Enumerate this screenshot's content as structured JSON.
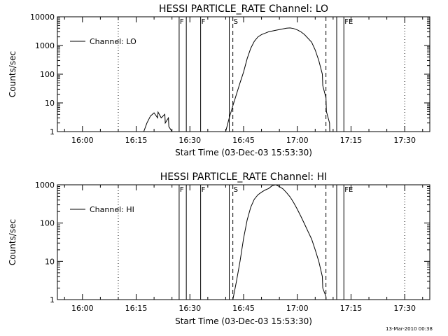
{
  "colors": {
    "background": "#ffffff",
    "foreground": "#000000"
  },
  "footer": {
    "date": "13-Mar-2010 00:38"
  },
  "chart_data": [
    {
      "type": "line",
      "title": "HESSI PARTICLE_RATE Channel: LO",
      "xlabel": "Start Time (03-Dec-03 15:53:30)",
      "ylabel": "Counts/sec",
      "y_scale": "log",
      "ylim": [
        1,
        10000
      ],
      "xlim": [
        "15:53",
        "17:37"
      ],
      "x_ticks": [
        "16:00",
        "16:15",
        "16:30",
        "16:45",
        "17:00",
        "17:15",
        "17:30"
      ],
      "y_ticks": [
        "1",
        "10",
        "100",
        "1000",
        "10000"
      ],
      "legend": {
        "entries": [
          "Channel: LO"
        ],
        "placement": "top-left"
      },
      "grid": false,
      "markers": [
        {
          "label": "F",
          "time": "16:27",
          "style": "solid"
        },
        {
          "label": "",
          "time": "16:29",
          "style": "solid"
        },
        {
          "label": "F",
          "time": "16:33",
          "style": "solid"
        },
        {
          "label": "",
          "time": "16:41",
          "style": "solid"
        },
        {
          "label": "S",
          "time": "16:42",
          "style": "dashed"
        },
        {
          "label": "",
          "time": "17:08",
          "style": "dashed"
        },
        {
          "label": "",
          "time": "17:11",
          "style": "solid"
        },
        {
          "label": "FE",
          "time": "17:13",
          "style": "solid"
        },
        {
          "label": "",
          "time": "16:10",
          "style": "dotted"
        },
        {
          "label": "",
          "time": "17:30",
          "style": "dotted"
        }
      ],
      "series": [
        {
          "name": "Channel: LO",
          "x": [
            "16:17",
            "16:17",
            "16:18",
            "16:19",
            "16:20",
            "16:21",
            "16:21",
            "16:22",
            "16:23",
            "16:23",
            "16:24",
            "16:24",
            "16:25",
            "16:25"
          ],
          "y": [
            0.5,
            1,
            2,
            3.5,
            4.5,
            3,
            4.8,
            3,
            4,
            2,
            3,
            1.5,
            1,
            0.5
          ]
        },
        {
          "name": "",
          "x": [
            "16:38",
            "16:40",
            "16:41",
            "16:42",
            "16:43",
            "16:44",
            "16:45",
            "16:46",
            "16:47",
            "16:48",
            "16:49",
            "16:50",
            "16:52",
            "16:54",
            "16:56",
            "16:57",
            "16:58",
            "16:59",
            "17:00",
            "17:01",
            "17:02",
            "17:04",
            "17:05",
            "17:06",
            "17:07",
            "17:07",
            "17:08",
            "17:08",
            "17:09",
            "17:09"
          ],
          "y": [
            0.5,
            1,
            3,
            8,
            20,
            50,
            120,
            350,
            800,
            1400,
            2000,
            2400,
            3000,
            3400,
            3800,
            4000,
            4100,
            3900,
            3500,
            3000,
            2400,
            1300,
            700,
            300,
            100,
            40,
            15,
            5,
            2,
            0.5
          ]
        }
      ]
    },
    {
      "type": "line",
      "title": "HESSI PARTICLE_RATE Channel: HI",
      "xlabel": "Start Time (03-Dec-03 15:53:30)",
      "ylabel": "Counts/sec",
      "y_scale": "log",
      "ylim": [
        1,
        1000
      ],
      "xlim": [
        "15:53",
        "17:37"
      ],
      "x_ticks": [
        "16:00",
        "16:15",
        "16:30",
        "16:45",
        "17:00",
        "17:15",
        "17:30"
      ],
      "y_ticks": [
        "1",
        "10",
        "100",
        "1000"
      ],
      "legend": {
        "entries": [
          "Channel: HI"
        ],
        "placement": "top-left"
      },
      "grid": false,
      "markers": [
        {
          "label": "F",
          "time": "16:27",
          "style": "solid"
        },
        {
          "label": "",
          "time": "16:29",
          "style": "solid"
        },
        {
          "label": "F",
          "time": "16:33",
          "style": "solid"
        },
        {
          "label": "",
          "time": "16:41",
          "style": "solid"
        },
        {
          "label": "S",
          "time": "16:42",
          "style": "dashed"
        },
        {
          "label": "",
          "time": "17:08",
          "style": "dashed"
        },
        {
          "label": "",
          "time": "17:11",
          "style": "solid"
        },
        {
          "label": "FE",
          "time": "17:13",
          "style": "solid"
        },
        {
          "label": "",
          "time": "16:10",
          "style": "dotted"
        },
        {
          "label": "",
          "time": "17:30",
          "style": "dotted"
        }
      ],
      "series": [
        {
          "name": "Channel: HI",
          "x": [
            "16:42",
            "16:43",
            "16:44",
            "16:45",
            "16:46",
            "16:47",
            "16:48",
            "16:49",
            "16:50",
            "16:51",
            "16:52",
            "16:53",
            "16:54",
            "16:55",
            "16:56",
            "16:57",
            "16:58",
            "16:59",
            "17:00",
            "17:01",
            "17:02",
            "17:03",
            "17:04",
            "17:05",
            "17:06",
            "17:07",
            "17:07",
            "17:08",
            "17:08"
          ],
          "y": [
            1,
            3,
            10,
            40,
            120,
            260,
            420,
            550,
            640,
            730,
            800,
            950,
            1000,
            900,
            780,
            620,
            480,
            340,
            230,
            150,
            95,
            60,
            38,
            20,
            10,
            4,
            2,
            1.2,
            0.6
          ]
        }
      ]
    }
  ]
}
